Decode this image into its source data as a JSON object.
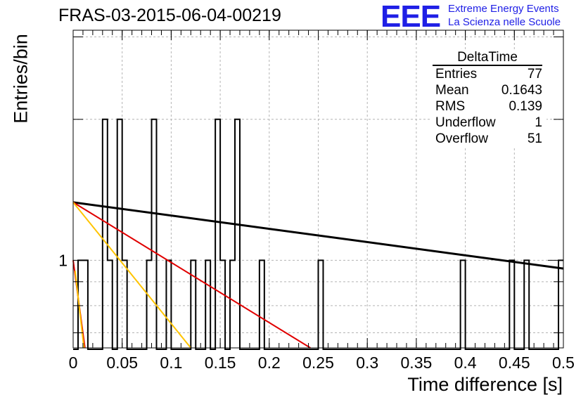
{
  "header": {
    "title": "FRAS-03-2015-06-04-00219",
    "logo_text": "EEE",
    "logo_line1": "Extreme Energy Events",
    "logo_line2": "La Scienza nelle Scuole"
  },
  "stats": {
    "title": "DeltaTime",
    "rows": [
      {
        "label": "Entries",
        "value": "77"
      },
      {
        "label": "Mean",
        "value": "0.1643"
      },
      {
        "label": "RMS",
        "value": "0.139"
      },
      {
        "label": "Underflow",
        "value": "1"
      },
      {
        "label": "Overflow",
        "value": "51"
      }
    ]
  },
  "chart_data": {
    "type": "histogram",
    "title": "FRAS-03-2015-06-04-00219",
    "xlabel": "Time difference [s]",
    "ylabel": "Entries/bin",
    "xlim": [
      0,
      0.5
    ],
    "ylim": [
      0.65,
      3.1
    ],
    "yscale": "log",
    "grid": true,
    "legend": "stats box top-right",
    "x_ticks": [
      "0",
      "0.05",
      "0.1",
      "0.15",
      "0.2",
      "0.25",
      "0.3",
      "0.35",
      "0.4",
      "0.45",
      "0.5"
    ],
    "y_ticks": [
      "1"
    ],
    "bin_width": 0.005,
    "bins": [
      {
        "x": 0.005,
        "count": 1
      },
      {
        "x": 0.01,
        "count": 1
      },
      {
        "x": 0.03,
        "count": 2
      },
      {
        "x": 0.035,
        "count": 1
      },
      {
        "x": 0.045,
        "count": 2
      },
      {
        "x": 0.05,
        "count": 1
      },
      {
        "x": 0.075,
        "count": 1
      },
      {
        "x": 0.08,
        "count": 2
      },
      {
        "x": 0.095,
        "count": 1
      },
      {
        "x": 0.12,
        "count": 1
      },
      {
        "x": 0.135,
        "count": 1
      },
      {
        "x": 0.145,
        "count": 2
      },
      {
        "x": 0.15,
        "count": 1
      },
      {
        "x": 0.16,
        "count": 1
      },
      {
        "x": 0.165,
        "count": 2
      },
      {
        "x": 0.19,
        "count": 1
      },
      {
        "x": 0.25,
        "count": 1
      },
      {
        "x": 0.395,
        "count": 1
      },
      {
        "x": 0.445,
        "count": 1
      },
      {
        "x": 0.46,
        "count": 1
      },
      {
        "x": 0.495,
        "count": 1
      }
    ],
    "fit_lines": [
      {
        "color": "#000000",
        "x": [
          0,
          0.5
        ],
        "y": [
          1.33,
          0.96
        ]
      },
      {
        "color": "#e00000",
        "x": [
          0,
          0.242
        ],
        "y": [
          1.33,
          0.65
        ]
      },
      {
        "color": "#ffc400",
        "x": [
          0,
          0.12
        ],
        "y": [
          1.33,
          0.65
        ]
      },
      {
        "color": "#e00000",
        "x": [
          0,
          0.012
        ],
        "y": [
          1.0,
          0.65
        ]
      },
      {
        "color": "#ffc400",
        "x": [
          0.002,
          0.011
        ],
        "y": [
          0.95,
          0.65
        ]
      }
    ]
  }
}
